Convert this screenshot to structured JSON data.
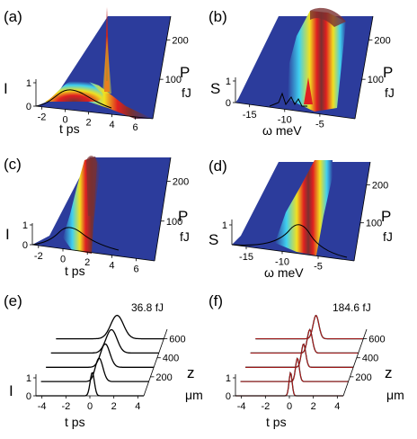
{
  "figure": {
    "panels": {
      "a": {
        "label": "(a)",
        "ylabel": "I",
        "xlabel": "t ps",
        "zlabel_P": "P",
        "zlabel_unit": "fJ"
      },
      "b": {
        "label": "(b)",
        "ylabel": "S",
        "xlabel": "ω meV",
        "zlabel_P": "P",
        "zlabel_unit": "fJ"
      },
      "c": {
        "label": "(c)",
        "ylabel": "I",
        "xlabel": "t ps",
        "zlabel_P": "P",
        "zlabel_unit": "fJ"
      },
      "d": {
        "label": "(d)",
        "ylabel": "S",
        "xlabel": "ω meV",
        "zlabel_P": "P",
        "zlabel_unit": "fJ"
      },
      "e": {
        "label": "(e)",
        "ylabel": "I",
        "xlabel": "t ps",
        "zlabel_z": "z",
        "zlabel_unit": "μm",
        "annotation": "36.8 fJ"
      },
      "f": {
        "label": "(f)",
        "ylabel": "I",
        "xlabel": "t ps",
        "zlabel_z": "z",
        "zlabel_unit": "μm",
        "annotation": "184.6 fJ"
      }
    },
    "colors": {
      "background_plane": "#2c3c9c",
      "peak_dark": "#7a3030",
      "peak_red": "#e02020",
      "peak_yellow": "#f0e020",
      "peak_cyan": "#40d0f0",
      "line": "#000000",
      "overlay_red": "#d02020"
    }
  },
  "chart_data": [
    {
      "panel": "a",
      "type": "area",
      "title": "",
      "xlabel": "t ps",
      "ylabel": "I",
      "zlabel": "P fJ",
      "x_ticks": [
        "-2",
        "0",
        "2",
        "4",
        "6"
      ],
      "y_ticks": [
        "0",
        "1"
      ],
      "z_ticks": [
        "100",
        "200"
      ],
      "xlim": [
        -2.5,
        7.5
      ],
      "zlim": [
        0,
        260
      ],
      "peak_t": 1.8,
      "peak_P": 30
    },
    {
      "panel": "b",
      "type": "area",
      "title": "",
      "xlabel": "ω meV",
      "ylabel": "S",
      "zlabel": "P fJ",
      "x_ticks": [
        "-15",
        "-10",
        "-5"
      ],
      "y_ticks": [
        "0",
        "1"
      ],
      "z_ticks": [
        "100",
        "200"
      ],
      "xlim": [
        -17,
        0
      ],
      "zlim": [
        0,
        260
      ],
      "ridge_start_omega": -5,
      "ridge_end_omega": -9
    },
    {
      "panel": "c",
      "type": "area",
      "title": "",
      "xlabel": "t ps",
      "ylabel": "I",
      "zlabel": "P fJ",
      "x_ticks": [
        "-2",
        "0",
        "2",
        "4",
        "6"
      ],
      "y_ticks": [
        "0",
        "1"
      ],
      "z_ticks": [
        "100",
        "200"
      ],
      "xlim": [
        -2.5,
        7.5
      ],
      "zlim": [
        0,
        260
      ]
    },
    {
      "panel": "d",
      "type": "area",
      "title": "",
      "xlabel": "ω meV",
      "ylabel": "S",
      "zlabel": "P fJ",
      "x_ticks": [
        "-15",
        "-10",
        "-5"
      ],
      "y_ticks": [
        "1"
      ],
      "z_ticks": [
        "100",
        "200"
      ],
      "xlim": [
        -17,
        0
      ],
      "zlim": [
        0,
        260
      ]
    },
    {
      "panel": "e",
      "type": "line",
      "title": "",
      "xlabel": "t ps",
      "ylabel": "I",
      "zlabel": "z μm",
      "x_ticks": [
        "-4",
        "-2",
        "0",
        "2",
        "4"
      ],
      "y_ticks": [
        "0",
        "1"
      ],
      "z_ticks": [
        "200",
        "400",
        "600"
      ],
      "xlim": [
        -4.5,
        4.5
      ],
      "zlim": [
        0,
        700
      ],
      "series": [
        {
          "z": 0,
          "peak_t": 0.2,
          "width": 0.25
        },
        {
          "z": 150,
          "peak_t": 0.35,
          "width": 0.45
        },
        {
          "z": 300,
          "peak_t": 0.45,
          "width": 0.55
        },
        {
          "z": 450,
          "peak_t": 0.55,
          "width": 0.65
        },
        {
          "z": 600,
          "peak_t": 0.6,
          "width": 0.75
        }
      ]
    },
    {
      "panel": "f",
      "type": "line",
      "title": "",
      "xlabel": "t ps",
      "ylabel": "I",
      "zlabel": "z μm",
      "x_ticks": [
        "-4",
        "-2",
        "0",
        "2",
        "4"
      ],
      "y_ticks": [
        "0",
        "1"
      ],
      "z_ticks": [
        "200",
        "400",
        "600"
      ],
      "xlim": [
        -4.5,
        4.5
      ],
      "zlim": [
        0,
        700
      ],
      "series": [
        {
          "z": 0,
          "peak_t": 0.1,
          "width": 0.18
        },
        {
          "z": 150,
          "peak_t": 0.25,
          "width": 0.22
        },
        {
          "z": 300,
          "peak_t": 0.35,
          "width": 0.26
        },
        {
          "z": 450,
          "peak_t": 0.45,
          "width": 0.3
        },
        {
          "z": 600,
          "peak_t": 0.55,
          "width": 0.34
        }
      ]
    }
  ]
}
